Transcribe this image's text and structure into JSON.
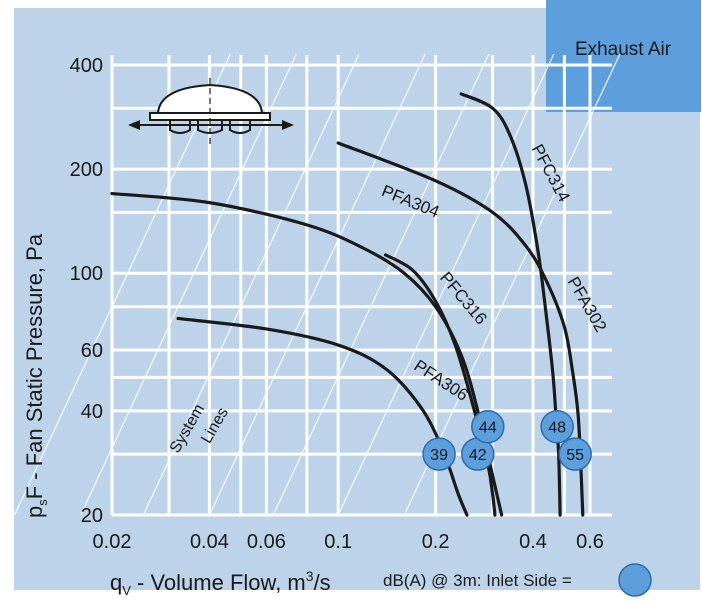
{
  "chart_data": {
    "type": "line",
    "title": "Exhaust Air",
    "xlabel_main": "q",
    "xlabel_sub": "V",
    "xlabel_rest": " - Volume Flow, m",
    "xlabel_sup": "3",
    "xlabel_end": "/s",
    "ylabel_main": "p",
    "ylabel_sub": "s",
    "ylabel_rest": "F - Fan Static Pressure, Pa",
    "x_scale": "log",
    "y_scale": "log",
    "xlim": [
      0.02,
      0.7
    ],
    "ylim": [
      20,
      430
    ],
    "x_ticks": [
      {
        "value": 0.02,
        "label": "0.02"
      },
      {
        "value": 0.04,
        "label": "0.04"
      },
      {
        "value": 0.06,
        "label": "0.06"
      },
      {
        "value": 0.1,
        "label": "0.1"
      },
      {
        "value": 0.2,
        "label": "0.2"
      },
      {
        "value": 0.4,
        "label": "0.4"
      },
      {
        "value": 0.6,
        "label": "0.6"
      }
    ],
    "y_ticks": [
      {
        "value": 20,
        "label": "20"
      },
      {
        "value": 40,
        "label": "40"
      },
      {
        "value": 60,
        "label": "60"
      },
      {
        "value": 100,
        "label": "100"
      },
      {
        "value": 200,
        "label": "200"
      },
      {
        "value": 400,
        "label": "400"
      }
    ],
    "grid": true,
    "system_lines_label": [
      "System",
      "Lines"
    ],
    "series": [
      {
        "name": "PFA304",
        "points": [
          [
            0.02,
            170
          ],
          [
            0.04,
            160
          ],
          [
            0.08,
            138
          ],
          [
            0.12,
            118
          ],
          [
            0.16,
            100
          ],
          [
            0.2,
            80
          ],
          [
            0.24,
            58
          ],
          [
            0.27,
            40
          ],
          [
            0.3,
            26
          ],
          [
            0.32,
            20
          ]
        ]
      },
      {
        "name": "PFA306",
        "points": [
          [
            0.032,
            74
          ],
          [
            0.06,
            69
          ],
          [
            0.1,
            62
          ],
          [
            0.14,
            53
          ],
          [
            0.18,
            41
          ],
          [
            0.21,
            31
          ],
          [
            0.235,
            23
          ],
          [
            0.25,
            20
          ]
        ]
      },
      {
        "name": "PFC316",
        "points": [
          [
            0.14,
            113
          ],
          [
            0.17,
            102
          ],
          [
            0.2,
            83
          ],
          [
            0.23,
            62
          ],
          [
            0.26,
            42
          ],
          [
            0.29,
            28
          ],
          [
            0.3,
            23
          ],
          [
            0.305,
            20
          ]
        ]
      },
      {
        "name": "PFC314",
        "points": [
          [
            0.24,
            330
          ],
          [
            0.3,
            300
          ],
          [
            0.34,
            250
          ],
          [
            0.38,
            180
          ],
          [
            0.415,
            115
          ],
          [
            0.44,
            75
          ],
          [
            0.46,
            52
          ],
          [
            0.47,
            40
          ],
          [
            0.48,
            30
          ],
          [
            0.485,
            20
          ]
        ]
      },
      {
        "name": "PFA302",
        "points": [
          [
            0.1,
            238
          ],
          [
            0.2,
            185
          ],
          [
            0.3,
            150
          ],
          [
            0.38,
            120
          ],
          [
            0.44,
            95
          ],
          [
            0.5,
            70
          ],
          [
            0.53,
            52
          ],
          [
            0.55,
            40
          ],
          [
            0.56,
            30
          ],
          [
            0.57,
            20
          ]
        ]
      }
    ],
    "series_labels": [
      {
        "text": "PFA304",
        "x": 0.135,
        "y": 168,
        "rotate": 22
      },
      {
        "text": "PFA306",
        "x": 0.17,
        "y": 53,
        "rotate": 33
      },
      {
        "text": "PFC316",
        "x": 0.205,
        "y": 97,
        "rotate": 50
      },
      {
        "text": "PFC314",
        "x": 0.395,
        "y": 230,
        "rotate": 62
      },
      {
        "text": "PFA302",
        "x": 0.51,
        "y": 95,
        "rotate": 60
      }
    ],
    "badges": [
      {
        "label": "39",
        "x": 0.205,
        "y": 30
      },
      {
        "label": "42",
        "x": 0.27,
        "y": 30
      },
      {
        "label": "44",
        "x": 0.29,
        "y": 36
      },
      {
        "label": "48",
        "x": 0.475,
        "y": 36
      },
      {
        "label": "55",
        "x": 0.54,
        "y": 30
      }
    ],
    "legend_text": "dB(A) @ 3m: Inlet Side =",
    "colors": {
      "panel": "#bcd3ea",
      "grid": "#ffffff",
      "curve": "#1a1a1a",
      "badge_fill": "#5d9fdc",
      "badge_stroke": "#2f6aa8",
      "title_box": "#5d9fdc"
    }
  }
}
